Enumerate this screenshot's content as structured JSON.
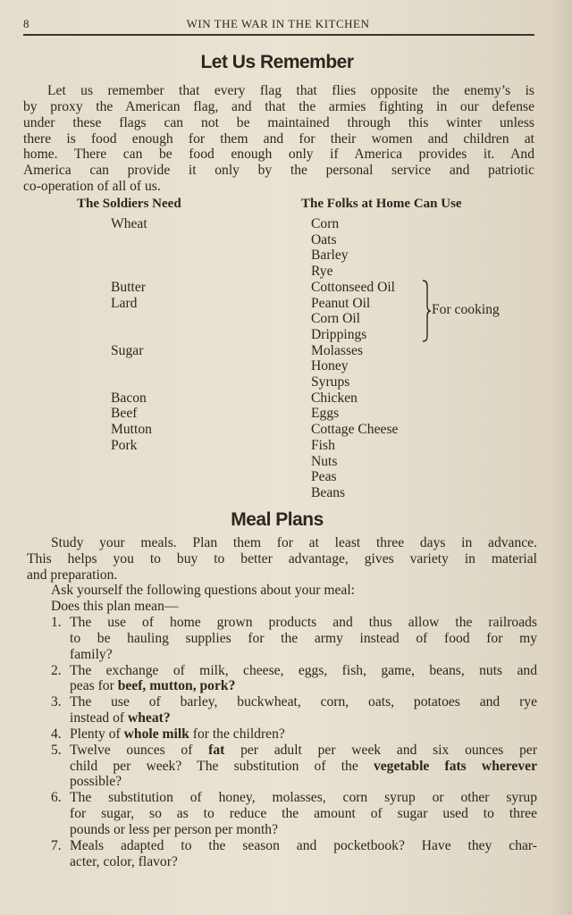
{
  "header": {
    "page_number": "8",
    "running_title": "WIN THE WAR IN THE KITCHEN"
  },
  "section1": {
    "title": "Let Us Remember",
    "lines": [
      "Let us remember that every flag that flies opposite the enemy’s is",
      "by proxy the American flag, and that the armies fighting in our defense",
      "under these flags can not be maintained through this winter unless",
      "there is food enough for them and for their women and children at",
      "home.  There can be food enough only if America provides it.  And",
      "America can provide it only by the personal service and patriotic",
      "co-operation of all of us."
    ],
    "table": {
      "headers": [
        "The Soldiers Need",
        "The Folks at Home Can Use"
      ],
      "rows": [
        [
          "Wheat",
          "Corn"
        ],
        [
          "",
          "Oats"
        ],
        [
          "",
          "Barley"
        ],
        [
          "",
          "Rye"
        ],
        [
          "Butter",
          "Cottonseed Oil"
        ],
        [
          "Lard",
          "Peanut Oil"
        ],
        [
          "",
          "Corn Oil"
        ],
        [
          "",
          "Drippings"
        ],
        [
          "Sugar",
          "Molasses"
        ],
        [
          "",
          "Honey"
        ],
        [
          "",
          "Syrups"
        ],
        [
          "Bacon",
          "Chicken"
        ],
        [
          "Beef",
          "Eggs"
        ],
        [
          "Mutton",
          "Cottage Cheese"
        ],
        [
          "Pork",
          "Fish"
        ],
        [
          "",
          "Nuts"
        ],
        [
          "",
          "Peas"
        ],
        [
          "",
          "Beans"
        ]
      ],
      "brace_note": "For cooking"
    }
  },
  "section2": {
    "title": "Meal Plans",
    "intro_lines": [
      "Study your meals.  Plan them for at least three days in advance.",
      "This helps you to buy to better advantage, gives variety in material",
      "and preparation."
    ],
    "ask": "Ask yourself the following questions about your meal:",
    "does": "Does this plan mean—",
    "items": [
      {
        "n": "1.",
        "lines": [
          [
            {
              "t": "The use of home grown products and thus allow the railroads"
            }
          ],
          [
            {
              "t": "to be hauling supplies for the army instead of food for my"
            }
          ],
          [
            {
              "t": "family?"
            }
          ]
        ]
      },
      {
        "n": "2.",
        "lines": [
          [
            {
              "t": "The exchange of milk, cheese, eggs, fish, game, beans, nuts and"
            }
          ],
          [
            {
              "t": "peas for "
            },
            {
              "t": "beef, mutton, pork?",
              "b": true
            }
          ]
        ]
      },
      {
        "n": "3.",
        "lines": [
          [
            {
              "t": "The use of barley, buckwheat, corn, oats, potatoes and rye"
            }
          ],
          [
            {
              "t": "instead of "
            },
            {
              "t": "wheat?",
              "b": true
            }
          ]
        ]
      },
      {
        "n": "4.",
        "lines": [
          [
            {
              "t": "Plenty of "
            },
            {
              "t": "whole milk",
              "b": true
            },
            {
              "t": " for the children?"
            }
          ]
        ]
      },
      {
        "n": "5.",
        "lines": [
          [
            {
              "t": "Twelve ounces of "
            },
            {
              "t": "fat",
              "b": true
            },
            {
              "t": " per adult per week and six ounces per"
            }
          ],
          [
            {
              "t": "child per week?  The substitution of the "
            },
            {
              "t": "vegetable fats wherever",
              "b": true
            }
          ],
          [
            {
              "t": "possible?"
            }
          ]
        ]
      },
      {
        "n": "6.",
        "lines": [
          [
            {
              "t": "The substitution of honey, molasses, corn syrup or other syrup"
            }
          ],
          [
            {
              "t": "for sugar, so as to reduce the amount of sugar used to three"
            }
          ],
          [
            {
              "t": "pounds or less per person per month?"
            }
          ]
        ]
      },
      {
        "n": "7.",
        "lines": [
          [
            {
              "t": "Meals adapted to the season and pocketbook?  Have they char-"
            }
          ],
          [
            {
              "t": "acter, color, flavor?"
            }
          ]
        ]
      }
    ]
  }
}
